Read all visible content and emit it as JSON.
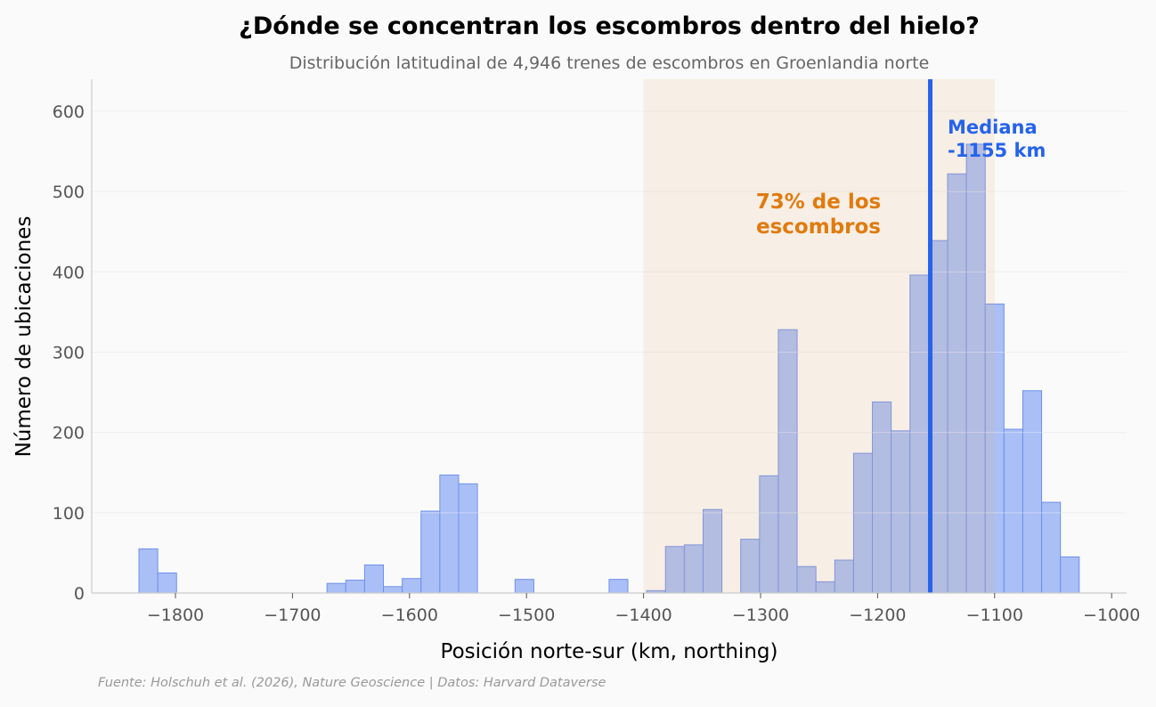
{
  "chart_data": {
    "type": "bar",
    "title": "¿Dónde se concentran los escombros dentro del hielo?",
    "subtitle": "Distribución latitudinal de 4,946 trenes de escombros en Groenlandia norte",
    "xlabel": "Posición norte-sur (km, northing)",
    "ylabel": "Número de ubicaciones",
    "xlim": [
      -1870,
      -990
    ],
    "ylim": [
      0,
      640
    ],
    "xticks": [
      -1800,
      -1700,
      -1600,
      -1500,
      -1400,
      -1300,
      -1200,
      -1100,
      -1000
    ],
    "xtick_labels": [
      "−1800",
      "−1700",
      "−1600",
      "−1500",
      "−1400",
      "−1300",
      "−1200",
      "−1100",
      "−1000"
    ],
    "yticks": [
      0,
      100,
      200,
      300,
      400,
      500,
      600
    ],
    "ytick_labels": [
      "0",
      "100",
      "200",
      "300",
      "400",
      "500",
      "600"
    ],
    "grid": "horizontal",
    "bin_start": -1831.2,
    "bin_width": 16.07,
    "counts": [
      55,
      25,
      0,
      0,
      0,
      0,
      0,
      0,
      0,
      0,
      12,
      16,
      35,
      8,
      18,
      102,
      147,
      136,
      0,
      0,
      17,
      0,
      0,
      0,
      0,
      17,
      0,
      3,
      58,
      60,
      104,
      0,
      67,
      146,
      328,
      33,
      14,
      41,
      174,
      238,
      202,
      396,
      439,
      522,
      559,
      360,
      204,
      252,
      113,
      45
    ],
    "highlight_range": [
      -1400,
      -1100
    ],
    "highlight_label": "73% de los\nescombros",
    "median": -1155,
    "median_label_line1": "Mediana",
    "median_label_line2": "-1155 km",
    "source": "Fuente: Holschuh et al. (2026), Nature Geoscience | Datos: Harvard Dataverse",
    "colors": {
      "bar_fill": "#a4bcf5",
      "bar_edge": "#6e91ea",
      "highlight": "#e8b27a",
      "highlight_text": "#e07b0e",
      "median": "#2563eb",
      "background": "#fafafa"
    }
  }
}
